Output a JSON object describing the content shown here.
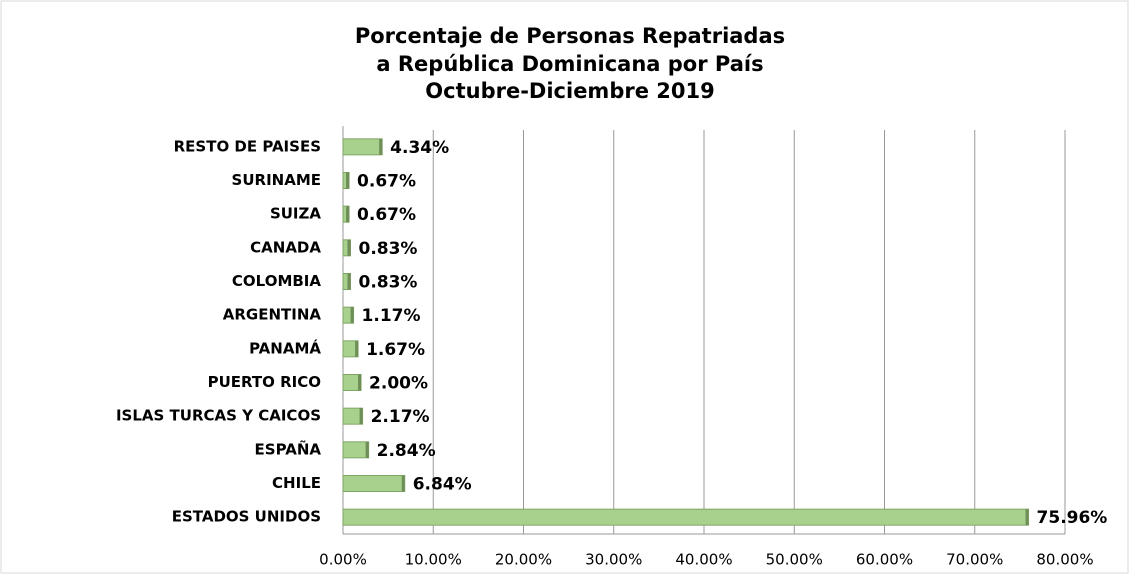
{
  "chart_data": {
    "type": "hbar",
    "title": [
      "Porcentaje de Personas Repatriadas",
      "a República Dominicana por País",
      "Octubre-Diciembre 2019"
    ],
    "categories": [
      "RESTO DE PAISES",
      "SURINAME",
      "SUIZA",
      "CANADA",
      "COLOMBIA",
      "ARGENTINA",
      "PANAMÁ",
      "PUERTO RICO",
      "ISLAS TURCAS Y CAICOS",
      "ESPAÑA",
      "CHILE",
      "ESTADOS UNIDOS"
    ],
    "values": [
      4.34,
      0.67,
      0.67,
      0.83,
      0.83,
      1.17,
      1.67,
      2.0,
      2.17,
      2.84,
      6.84,
      75.96
    ],
    "value_labels": [
      "4.34%",
      "0.67%",
      "0.67%",
      "0.83%",
      "0.83%",
      "1.17%",
      "1.67%",
      "2.00%",
      "2.17%",
      "2.84%",
      "6.84%",
      "75.96%"
    ],
    "color": "#a9d18e",
    "xlim": [
      0,
      80
    ],
    "xticks": [
      {
        "value": 0,
        "label": "0.00%"
      },
      {
        "value": 10,
        "label": "10.00%"
      },
      {
        "value": 20,
        "label": "20.00%"
      },
      {
        "value": 30,
        "label": "30.00%"
      },
      {
        "value": 40,
        "label": "40.00%"
      },
      {
        "value": 50,
        "label": "50.00%"
      },
      {
        "value": 60,
        "label": "60.00%"
      },
      {
        "value": 70,
        "label": "70.00%"
      },
      {
        "value": 80,
        "label": "80.00%"
      }
    ],
    "grid": true
  }
}
